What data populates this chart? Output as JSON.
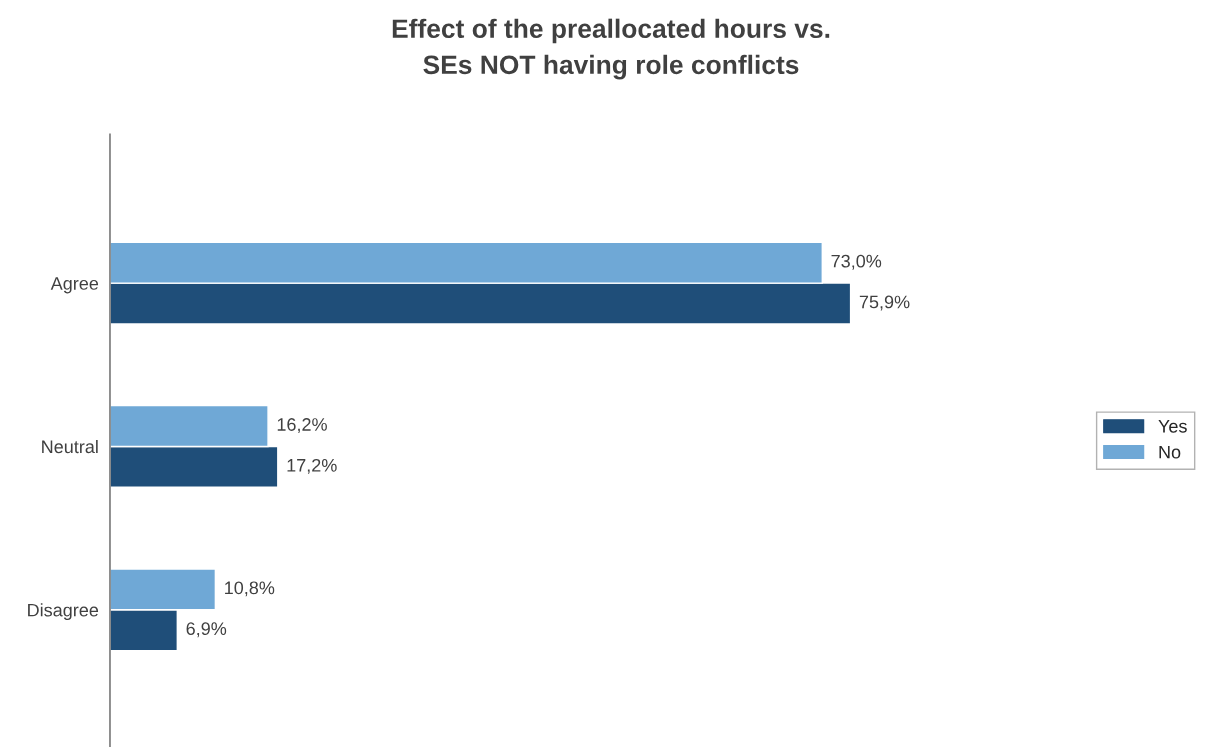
{
  "chart_data": {
    "type": "bar",
    "orientation": "horizontal",
    "title": "Effect of the preallocated hours vs.\nSEs NOT having role conflicts",
    "categories": [
      "Agree",
      "Neutral",
      "Disagree"
    ],
    "series": [
      {
        "name": "Yes",
        "color": "#1f4e79",
        "values": [
          75.9,
          17.2,
          6.9
        ],
        "value_labels": [
          "75,9%",
          "17,2%",
          "6,9%"
        ]
      },
      {
        "name": "No",
        "color": "#6fa8d6",
        "values": [
          73.0,
          16.2,
          10.8
        ],
        "value_labels": [
          "73,0%",
          "16,2%",
          "10,8%"
        ]
      }
    ],
    "legend": "right",
    "grid": false,
    "tick_labels": "y"
  }
}
